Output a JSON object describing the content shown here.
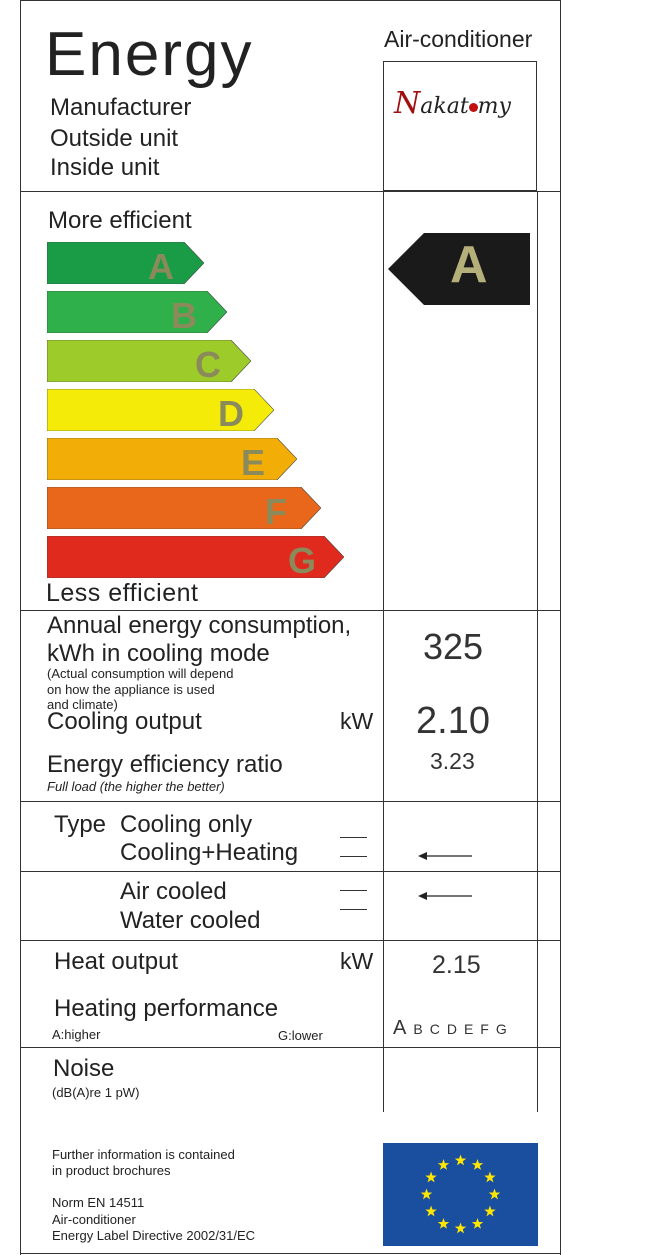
{
  "header": {
    "title": "Energy",
    "product_type": "Air-conditioner",
    "fields": [
      "Manufacturer",
      "Outside unit",
      "Inside unit"
    ],
    "brand_logo": "Nakatomy"
  },
  "efficiency": {
    "more_label": "More efficient",
    "less_label": "Less efficient",
    "classes": [
      {
        "letter": "A",
        "color": "#1a9c46"
      },
      {
        "letter": "B",
        "color": "#2fb04a"
      },
      {
        "letter": "C",
        "color": "#9ccb2a"
      },
      {
        "letter": "D",
        "color": "#f4ec08"
      },
      {
        "letter": "E",
        "color": "#f2ae06"
      },
      {
        "letter": "F",
        "color": "#e8671a"
      },
      {
        "letter": "G",
        "color": "#e02a1e"
      }
    ],
    "rating": "A",
    "rating_arrow_color": "#1a1a1a"
  },
  "consumption": {
    "label_line1": "Annual energy consumption,",
    "label_line2": "kWh in cooling mode",
    "note_line1": "(Actual consumption will depend",
    "note_line2": "on how the appliance is used",
    "note_line3": "and climate)",
    "value": "325"
  },
  "cooling": {
    "label": "Cooling output",
    "unit": "kW",
    "value": "2.10"
  },
  "eer": {
    "label": "Energy efficiency ratio",
    "sublabel": "Full load (the higher the better)",
    "value": "3.23"
  },
  "type": {
    "label": "Type",
    "option1": "Cooling only",
    "option2": "Cooling+Heating",
    "selected": "Cooling+Heating"
  },
  "cooling_medium": {
    "option1": "Air cooled",
    "option2": "Water cooled",
    "selected": "Air cooled"
  },
  "heat": {
    "label": "Heat output",
    "unit": "kW",
    "value": "2.15",
    "perf_label": "Heating performance",
    "higher": "A:higher",
    "lower": "G:lower",
    "scale": [
      "A",
      "B",
      "C",
      "D",
      "E",
      "F",
      "G"
    ]
  },
  "noise": {
    "label": "Noise",
    "unit": "(dB(A)re 1 pW)"
  },
  "footer": {
    "info_line1": "Further information is contained",
    "info_line2": "in product brochures",
    "norm": "Norm EN 14511",
    "product": "Air-conditioner",
    "directive": "Energy Label Directive 2002/31/EC",
    "eu_flag_color": "#1a4fa0",
    "eu_star_color": "#ffe600"
  }
}
